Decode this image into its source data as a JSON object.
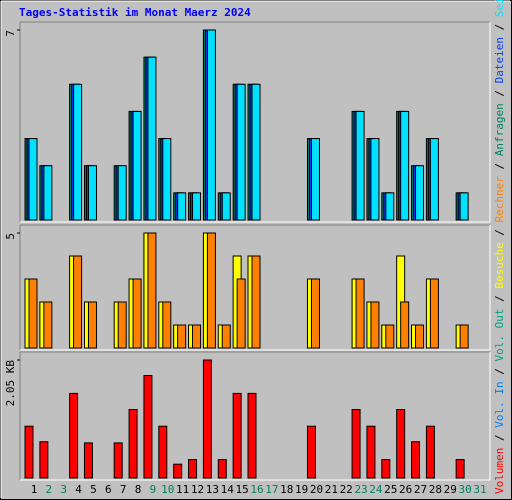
{
  "chart_data": {
    "type": "bar",
    "title": "Tages-Statistik im Monat Maerz 2024",
    "separator": " / ",
    "categories": [
      "1",
      "2",
      "3",
      "4",
      "5",
      "6",
      "7",
      "8",
      "9",
      "10",
      "11",
      "12",
      "13",
      "14",
      "15",
      "16",
      "17",
      "18",
      "19",
      "20",
      "21",
      "22",
      "23",
      "24",
      "25",
      "26",
      "27",
      "28",
      "29",
      "30",
      "31"
    ],
    "category_colors": [
      "#000000",
      "#00805c",
      "#00805c",
      "#000000",
      "#000000",
      "#000000",
      "#000000",
      "#000000",
      "#00805c",
      "#00805c",
      "#000000",
      "#000000",
      "#000000",
      "#000000",
      "#000000",
      "#00805c",
      "#00805c",
      "#000000",
      "#000000",
      "#000000",
      "#000000",
      "#000000",
      "#00805c",
      "#00805c",
      "#000000",
      "#000000",
      "#000000",
      "#000000",
      "#000000",
      "#00805c",
      "#00805c"
    ],
    "panels": [
      {
        "ylim": [
          0,
          7
        ],
        "yticks": [
          7
        ],
        "series": [
          {
            "name": "Anfragen",
            "color": "#00805c",
            "values": [
              3,
              2,
              0,
              5,
              2,
              0,
              2,
              4,
              6,
              3,
              1,
              1,
              7,
              1,
              5,
              5,
              0,
              0,
              0,
              3,
              0,
              0,
              4,
              3,
              1,
              4,
              2,
              3,
              0,
              1,
              0
            ]
          },
          {
            "name": "Dateien",
            "color": "#0040ff",
            "values": [
              3,
              2,
              0,
              5,
              2,
              0,
              2,
              4,
              6,
              3,
              1,
              1,
              7,
              1,
              5,
              5,
              0,
              0,
              0,
              3,
              0,
              0,
              4,
              3,
              1,
              4,
              2,
              3,
              0,
              1,
              0
            ]
          },
          {
            "name": "Seiten",
            "color": "#00e0ff",
            "values": [
              3,
              2,
              0,
              5,
              2,
              0,
              2,
              4,
              6,
              3,
              1,
              1,
              7,
              1,
              5,
              5,
              0,
              0,
              0,
              3,
              0,
              0,
              4,
              3,
              1,
              4,
              2,
              3,
              0,
              1,
              0
            ]
          }
        ]
      },
      {
        "ylim": [
          0,
          5
        ],
        "yticks": [
          5
        ],
        "series": [
          {
            "name": "Besuche",
            "color": "#ffff00",
            "values": [
              3,
              2,
              0,
              4,
              2,
              0,
              2,
              3,
              5,
              2,
              1,
              1,
              5,
              1,
              4,
              4,
              0,
              0,
              0,
              3,
              0,
              0,
              3,
              2,
              1,
              4,
              1,
              3,
              0,
              1,
              0
            ]
          },
          {
            "name": "Rechner",
            "color": "#ff8000",
            "values": [
              3,
              2,
              0,
              4,
              2,
              0,
              2,
              3,
              5,
              2,
              1,
              1,
              5,
              1,
              3,
              4,
              0,
              0,
              0,
              3,
              0,
              0,
              3,
              2,
              1,
              2,
              1,
              3,
              0,
              1,
              0
            ]
          }
        ]
      },
      {
        "ylim": [
          0,
          2.05
        ],
        "yticks": [
          {
            "value": 2.05,
            "label": "2.05 KB"
          }
        ],
        "series": [
          {
            "name": "Volumen",
            "color": "#ff0000",
            "values": [
              0.9,
              0.63,
              0,
              1.47,
              0.61,
              0,
              0.61,
              1.19,
              1.78,
              0.9,
              0.24,
              0.32,
              2.05,
              0.32,
              1.47,
              1.47,
              0,
              0,
              0,
              0.9,
              0,
              0,
              1.19,
              0.9,
              0.32,
              1.19,
              0.63,
              0.9,
              0,
              0.32,
              0
            ]
          },
          {
            "name": "Vol. In",
            "color": "#0080ff",
            "values": [
              null,
              null,
              null,
              null,
              null,
              null,
              null,
              null,
              null,
              null,
              null,
              null,
              null,
              null,
              null,
              null,
              null,
              null,
              null,
              null,
              null,
              null,
              null,
              null,
              null,
              null,
              null,
              null,
              null,
              null,
              null
            ]
          },
          {
            "name": "Vol. Out",
            "color": "#00a080",
            "values": [
              null,
              null,
              null,
              null,
              null,
              null,
              null,
              null,
              null,
              null,
              null,
              null,
              null,
              null,
              null,
              null,
              null,
              null,
              null,
              null,
              null,
              null,
              null,
              null,
              null,
              null,
              null,
              null,
              null,
              null,
              null
            ]
          }
        ]
      }
    ]
  }
}
